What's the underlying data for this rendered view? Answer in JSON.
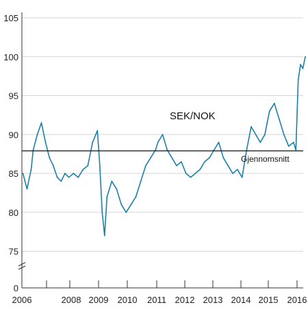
{
  "chart_data": {
    "type": "line",
    "title": "",
    "xlabel": "",
    "ylabel": "",
    "x_ticks": [
      "2006",
      "2008",
      "2009",
      "2010",
      "2011",
      "2012",
      "2013",
      "2014",
      "2015",
      "2016"
    ],
    "y_ticks": [
      "0",
      "75",
      "80",
      "85",
      "90",
      "95",
      "100",
      "105"
    ],
    "ylim": [
      75,
      106
    ],
    "axis_break": true,
    "grid": "horizontal",
    "series": [
      {
        "name": "SEK/NOK",
        "color": "#1b80a8",
        "x": [
          "2006-01",
          "2006-03",
          "2006-05",
          "2006-06",
          "2006-08",
          "2006-10",
          "2006-12",
          "2007-02",
          "2007-04",
          "2007-06",
          "2007-08",
          "2007-10",
          "2007-12",
          "2008-02",
          "2008-04",
          "2008-06",
          "2008-08",
          "2008-10",
          "2008-12",
          "2009-01",
          "2009-02",
          "2009-03",
          "2009-04",
          "2009-06",
          "2009-08",
          "2009-10",
          "2009-12",
          "2010-02",
          "2010-04",
          "2010-06",
          "2010-08",
          "2010-10",
          "2010-12",
          "2011-01",
          "2011-03",
          "2011-05",
          "2011-07",
          "2011-09",
          "2011-11",
          "2012-01",
          "2012-03",
          "2012-05",
          "2012-07",
          "2012-09",
          "2012-11",
          "2013-01",
          "2013-03",
          "2013-05",
          "2013-07",
          "2013-09",
          "2013-11",
          "2014-01",
          "2014-03",
          "2014-05",
          "2014-07",
          "2014-09",
          "2014-11",
          "2014-12",
          "2015-01",
          "2015-03",
          "2015-05",
          "2015-07",
          "2015-09",
          "2015-11",
          "2015-12",
          "2016-01",
          "2016-02",
          "2016-03",
          "2016-04"
        ],
        "values": [
          85,
          83,
          85.5,
          88,
          90,
          91.5,
          89,
          87,
          86,
          84.5,
          84,
          85,
          84.5,
          85,
          84.5,
          85.5,
          86,
          89,
          90.5,
          86,
          80,
          77,
          82,
          84,
          83,
          81,
          80,
          81,
          82,
          84,
          86,
          87,
          88,
          89,
          90,
          88,
          87,
          86,
          86.5,
          85,
          84.5,
          85,
          85.5,
          86.5,
          87,
          88,
          89,
          87,
          86,
          85,
          85.5,
          84.5,
          88,
          91,
          90,
          89,
          90,
          91.5,
          93,
          94,
          92,
          90,
          88.5,
          89,
          88,
          97,
          99,
          98.5,
          100
        ]
      }
    ],
    "annotations": [
      {
        "text": "SEK/NOK",
        "type": "series-label"
      },
      {
        "text": "Gjennomsnitt",
        "type": "reference-line",
        "value": 87.9
      }
    ]
  },
  "colors": {
    "line": "#1b80a8",
    "axis": "#333333",
    "grid": "#d6d6d6",
    "average": "#222222"
  }
}
